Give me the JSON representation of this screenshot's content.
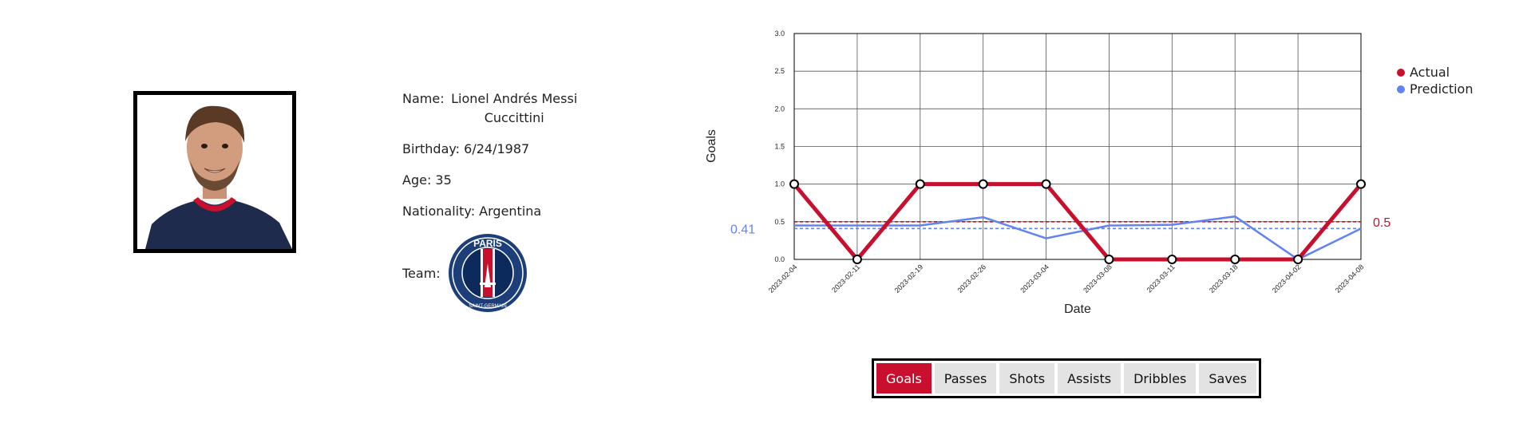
{
  "player": {
    "name_label": "Name: ",
    "name": "Lionel Andrés Messi Cuccittini",
    "birthday_label": "Birthday: ",
    "birthday": "6/24/1987",
    "age_label": "Age: ",
    "age": "35",
    "nationality_label": "Nationality: ",
    "nationality": "Argentina",
    "team_label": "Team: ",
    "team_logo_text": "PARIS",
    "team_logo_subtext": "SAINT-GERMAIN"
  },
  "tabs": [
    {
      "label": "Goals",
      "active": true
    },
    {
      "label": "Passes",
      "active": false
    },
    {
      "label": "Shots",
      "active": false
    },
    {
      "label": "Assists",
      "active": false
    },
    {
      "label": "Dribbles",
      "active": false
    },
    {
      "label": "Saves",
      "active": false
    }
  ],
  "colors": {
    "actual": "#c8102e",
    "prediction": "#6283f0",
    "active_tab": "#c8102e"
  },
  "chart_data": {
    "type": "line",
    "xlabel": "Date",
    "ylabel": "Goals",
    "x": [
      "2023-02-04",
      "2023-02-11",
      "2023-02-19",
      "2023-02-26",
      "2023-03-04",
      "2023-03-08",
      "2023-03-11",
      "2023-03-18",
      "2023-04-02",
      "2023-04-08"
    ],
    "ylim": [
      0,
      3
    ],
    "yticks": [
      "0.0",
      "0.5",
      "1.0",
      "1.5",
      "2.0",
      "2.5",
      "3.0"
    ],
    "grid": true,
    "legend_position": "right",
    "series": [
      {
        "name": "Actual",
        "values": [
          1,
          0,
          1,
          1,
          1,
          0,
          0,
          0,
          0,
          1
        ]
      },
      {
        "name": "Prediction",
        "values": [
          0.45,
          0.45,
          0.45,
          0.56,
          0.28,
          0.45,
          0.46,
          0.57,
          0.0,
          0.41
        ]
      }
    ],
    "mean_lines": [
      {
        "series": "Actual",
        "value": 0.5,
        "label": "0.5"
      },
      {
        "series": "Prediction",
        "value": 0.41,
        "label": "0.41"
      }
    ]
  }
}
